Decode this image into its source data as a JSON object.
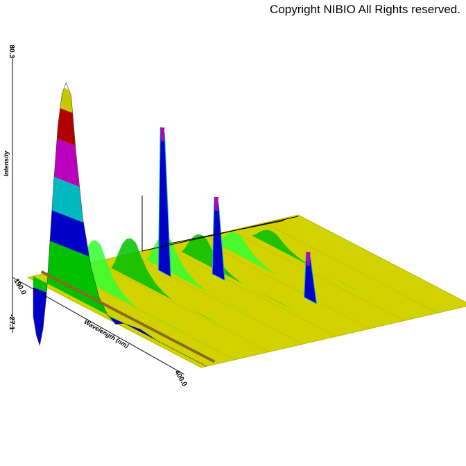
{
  "copyright": "Copyright NIBIO All Rights reserved.",
  "colors": {
    "floor": "#d2d200",
    "floor_edge": "#b8b800",
    "band_yellow": "#c8c800",
    "band_red": "#b00000",
    "band_magenta": "#bb00bb",
    "band_cyan": "#00b8c0",
    "band_blue": "#0000c8",
    "band_green": "#00c000",
    "band_lime": "#33ff33",
    "ridge_brown": "#8a6a20"
  },
  "chart_data": {
    "type": "area",
    "subtype": "3d-surface",
    "xlabel": "Wavelength (nm)",
    "ylabel": "Intensity",
    "x_tick_labels": [
      "190.0",
      "400.0"
    ],
    "y_tick_labels": [
      "-27.1",
      "80.3"
    ],
    "xlim": [
      190.0,
      400.0
    ],
    "zlim": [
      -27.1,
      80.3
    ],
    "grid": false,
    "legend": "none",
    "front_spectrum": {
      "wavelength": [
        190,
        194,
        198,
        202,
        206,
        210,
        215,
        220,
        225,
        230,
        236,
        242,
        250,
        260,
        270,
        280,
        290,
        300,
        320,
        340,
        360,
        380,
        400
      ],
      "intensity": [
        -15,
        -22,
        -25,
        -18,
        -5,
        15,
        40,
        62,
        75,
        80,
        76,
        55,
        32,
        15,
        5,
        0,
        -2,
        0,
        1,
        0,
        0,
        0,
        0
      ]
    },
    "peak_ridges": [
      {
        "wavelength": 206,
        "intensity": 80.3
      },
      {
        "wavelength": 232,
        "intensity": 55
      },
      {
        "wavelength": 258,
        "intensity": 30
      },
      {
        "wavelength": 330,
        "intensity": 18
      }
    ]
  }
}
